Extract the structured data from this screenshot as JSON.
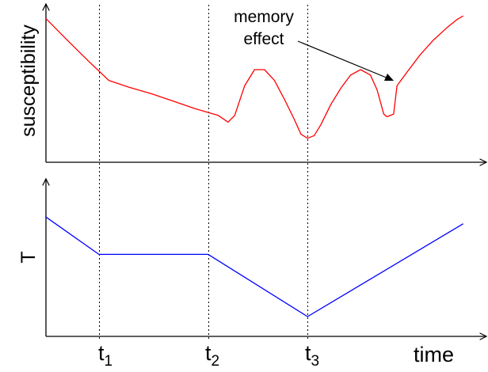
{
  "chart_data": [
    {
      "type": "line",
      "ylabel": "susceptibility",
      "xlabel": "",
      "grid": false,
      "x_markers": [
        "t1",
        "t2",
        "t3"
      ],
      "annotation": {
        "lines": [
          "memory",
          "effect"
        ],
        "points_to": "dip in red curve after t3"
      },
      "series": [
        {
          "color": "#ff0000",
          "points": [
            [
              0.0,
              0.98
            ],
            [
              0.06,
              0.83
            ],
            [
              0.13,
              0.66
            ],
            [
              0.19,
              0.52
            ],
            [
              0.25,
              0.47
            ],
            [
              0.32,
              0.42
            ],
            [
              0.38,
              0.37
            ],
            [
              0.45,
              0.31
            ],
            [
              0.52,
              0.26
            ],
            [
              0.55,
              0.21
            ],
            [
              0.57,
              0.26
            ],
            [
              0.6,
              0.48
            ],
            [
              0.63,
              0.6
            ],
            [
              0.66,
              0.6
            ],
            [
              0.69,
              0.52
            ],
            [
              0.72,
              0.38
            ],
            [
              0.75,
              0.23
            ],
            [
              0.77,
              0.12
            ],
            [
              0.79,
              0.09
            ],
            [
              0.81,
              0.11
            ],
            [
              0.83,
              0.19
            ],
            [
              0.86,
              0.34
            ],
            [
              0.89,
              0.46
            ],
            [
              0.92,
              0.56
            ],
            [
              0.95,
              0.6
            ],
            [
              0.98,
              0.56
            ],
            [
              1.0,
              0.45
            ],
            [
              1.02,
              0.27
            ],
            [
              1.03,
              0.25
            ],
            [
              1.05,
              0.27
            ],
            [
              1.06,
              0.48
            ],
            [
              1.09,
              0.58
            ],
            [
              1.13,
              0.71
            ],
            [
              1.17,
              0.82
            ],
            [
              1.21,
              0.91
            ],
            [
              1.24,
              0.97
            ],
            [
              1.26,
              1.0
            ]
          ]
        }
      ]
    },
    {
      "type": "line",
      "ylabel": "T",
      "xlabel": "time",
      "grid": false,
      "x_markers": [
        "t1",
        "t2",
        "t3"
      ],
      "series": [
        {
          "color": "#0000ff",
          "points": [
            [
              0.0,
              0.88
            ],
            [
              0.16,
              0.55
            ],
            [
              0.49,
              0.55
            ],
            [
              0.79,
              0.0
            ],
            [
              1.26,
              0.82
            ]
          ]
        }
      ]
    }
  ],
  "tick_labels": [
    {
      "base": "t",
      "sub": "1"
    },
    {
      "base": "t",
      "sub": "2"
    },
    {
      "base": "t",
      "sub": "3"
    }
  ]
}
